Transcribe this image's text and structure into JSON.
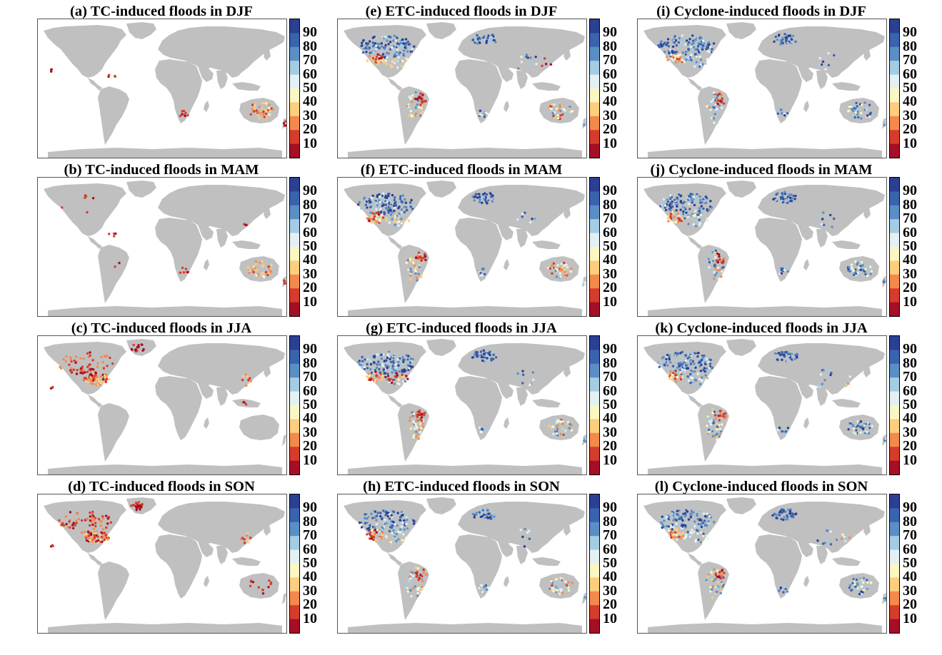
{
  "figure": {
    "panels": [
      {
        "id": "a",
        "title": "(a) TC-induced floods in DJF",
        "cyclone_type": "TC",
        "season": "DJF"
      },
      {
        "id": "e",
        "title": "(e) ETC-induced floods in DJF",
        "cyclone_type": "ETC",
        "season": "DJF"
      },
      {
        "id": "i",
        "title": "(i) Cyclone-induced floods in DJF",
        "cyclone_type": "Cyclone",
        "season": "DJF"
      },
      {
        "id": "b",
        "title": "(b) TC-induced floods in MAM",
        "cyclone_type": "TC",
        "season": "MAM"
      },
      {
        "id": "f",
        "title": "(f) ETC-induced floods in MAM",
        "cyclone_type": "ETC",
        "season": "MAM"
      },
      {
        "id": "j",
        "title": "(j) Cyclone-induced floods in MAM",
        "cyclone_type": "Cyclone",
        "season": "MAM"
      },
      {
        "id": "c",
        "title": "(c) TC-induced floods in JJA",
        "cyclone_type": "TC",
        "season": "JJA"
      },
      {
        "id": "g",
        "title": "(g) ETC-induced floods in JJA",
        "cyclone_type": "ETC",
        "season": "JJA"
      },
      {
        "id": "k",
        "title": "(k) Cyclone-induced floods in JJA",
        "cyclone_type": "Cyclone",
        "season": "JJA"
      },
      {
        "id": "d",
        "title": "(d) TC-induced floods in SON",
        "cyclone_type": "TC",
        "season": "SON"
      },
      {
        "id": "h",
        "title": "(h) ETC-induced floods in SON",
        "cyclone_type": "ETC",
        "season": "SON"
      },
      {
        "id": "l",
        "title": "(l) Cyclone-induced floods in SON",
        "cyclone_type": "Cyclone",
        "season": "SON"
      }
    ],
    "colorbar": {
      "ticks": [
        "90",
        "80",
        "70",
        "60",
        "50",
        "40",
        "30",
        "20",
        "10"
      ],
      "colors_top_to_bottom": [
        "#2b3f93",
        "#3a63ae",
        "#5a8fc6",
        "#a4cde4",
        "#e3f1f4",
        "#fbf7c3",
        "#fdce7d",
        "#f4894c",
        "#d63c2b",
        "#a50f26"
      ]
    },
    "land_color": "#c0c0c0"
  }
}
